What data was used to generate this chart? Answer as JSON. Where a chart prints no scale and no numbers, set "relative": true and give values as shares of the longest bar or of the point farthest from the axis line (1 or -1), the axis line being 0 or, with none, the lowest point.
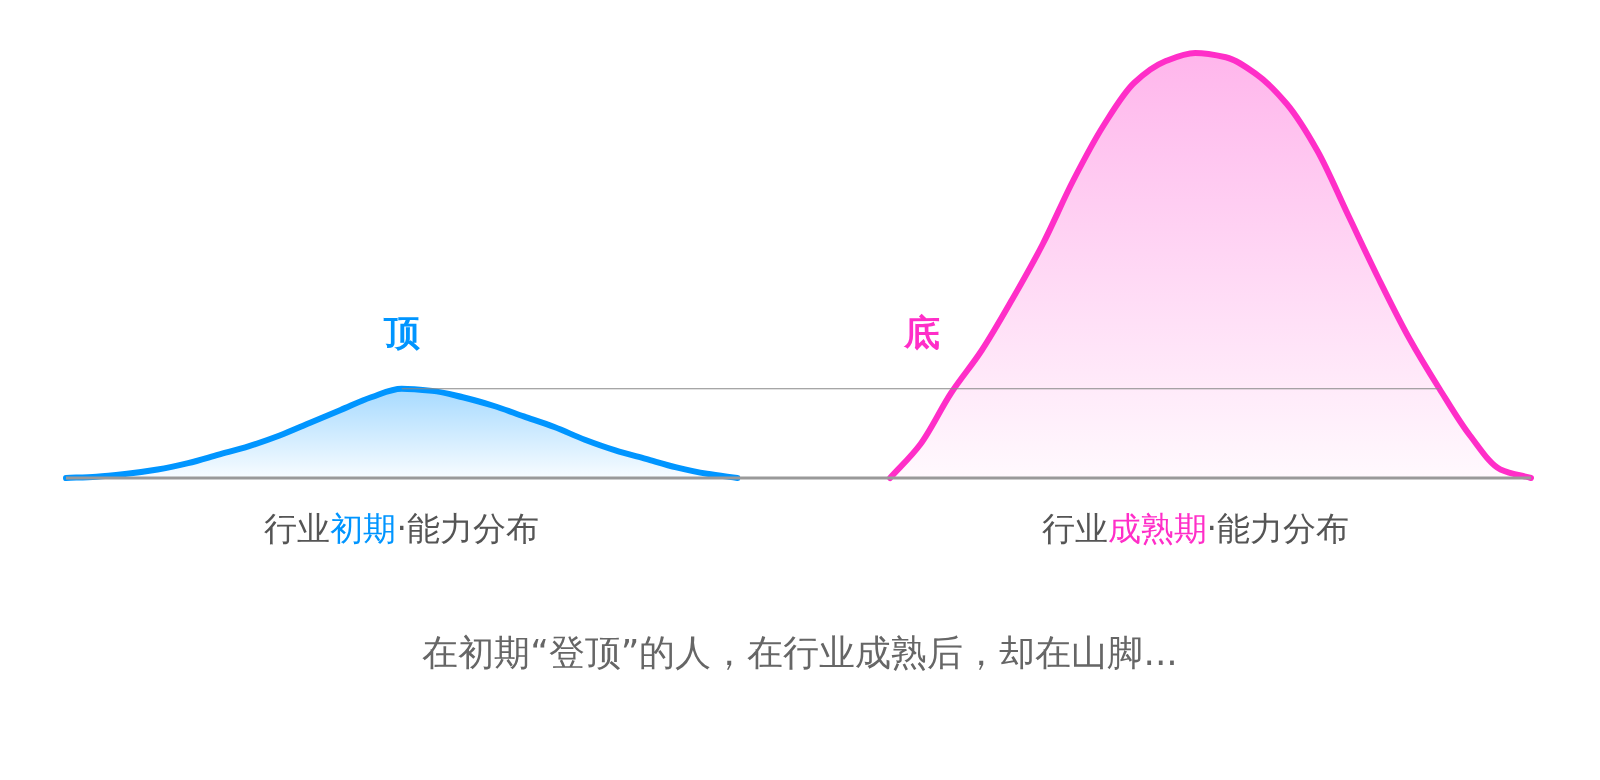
{
  "chart_data": {
    "type": "area",
    "relative": true,
    "categories": [
      null,
      null,
      null,
      null,
      null,
      null,
      null,
      null,
      null,
      null,
      null,
      null,
      null,
      null,
      null,
      null,
      null,
      null,
      null,
      null,
      null,
      null,
      null,
      null,
      null,
      null,
      null,
      null,
      null,
      null,
      null,
      null,
      null,
      null,
      null,
      null,
      null,
      null,
      null,
      null,
      null,
      null,
      null,
      null,
      null,
      null,
      null,
      null,
      null
    ],
    "series": [
      {
        "name": "行业初期·能力分布",
        "color": "#0095ff",
        "values": [
          0,
          0.003,
          0.01,
          0.02,
          0.035,
          0.055,
          0.075,
          0.1,
          0.13,
          0.16,
          0.19,
          0.21,
          0.205,
          0.19,
          0.17,
          0.145,
          0.12,
          0.09,
          0.065,
          0.045,
          0.025,
          0.01,
          0,
          null,
          null,
          null,
          null,
          null,
          null,
          null,
          null,
          null,
          null,
          null,
          null,
          null,
          null,
          null,
          null,
          null,
          null,
          null,
          null,
          null,
          null,
          null,
          null,
          null,
          null
        ]
      },
      {
        "name": "行业成熟期·能力分布",
        "color": "#ff2ec8",
        "values": [
          null,
          null,
          null,
          null,
          null,
          null,
          null,
          null,
          null,
          null,
          null,
          null,
          null,
          null,
          null,
          null,
          null,
          null,
          null,
          null,
          null,
          null,
          null,
          null,
          null,
          null,
          null,
          0,
          0.08,
          0.2,
          0.3,
          0.42,
          0.55,
          0.7,
          0.83,
          0.93,
          0.98,
          1.0,
          0.99,
          0.95,
          0.88,
          0.77,
          0.62,
          0.47,
          0.33,
          0.21,
          0.1,
          0.02,
          0
        ]
      }
    ],
    "ref_lines": [
      {
        "axis": "y",
        "value": 0.21,
        "color": "#888888"
      }
    ],
    "annotations": [
      "顶",
      "底",
      "在初期“登顶”的人，在行业成熟后，却在山脚..."
    ]
  }
}
